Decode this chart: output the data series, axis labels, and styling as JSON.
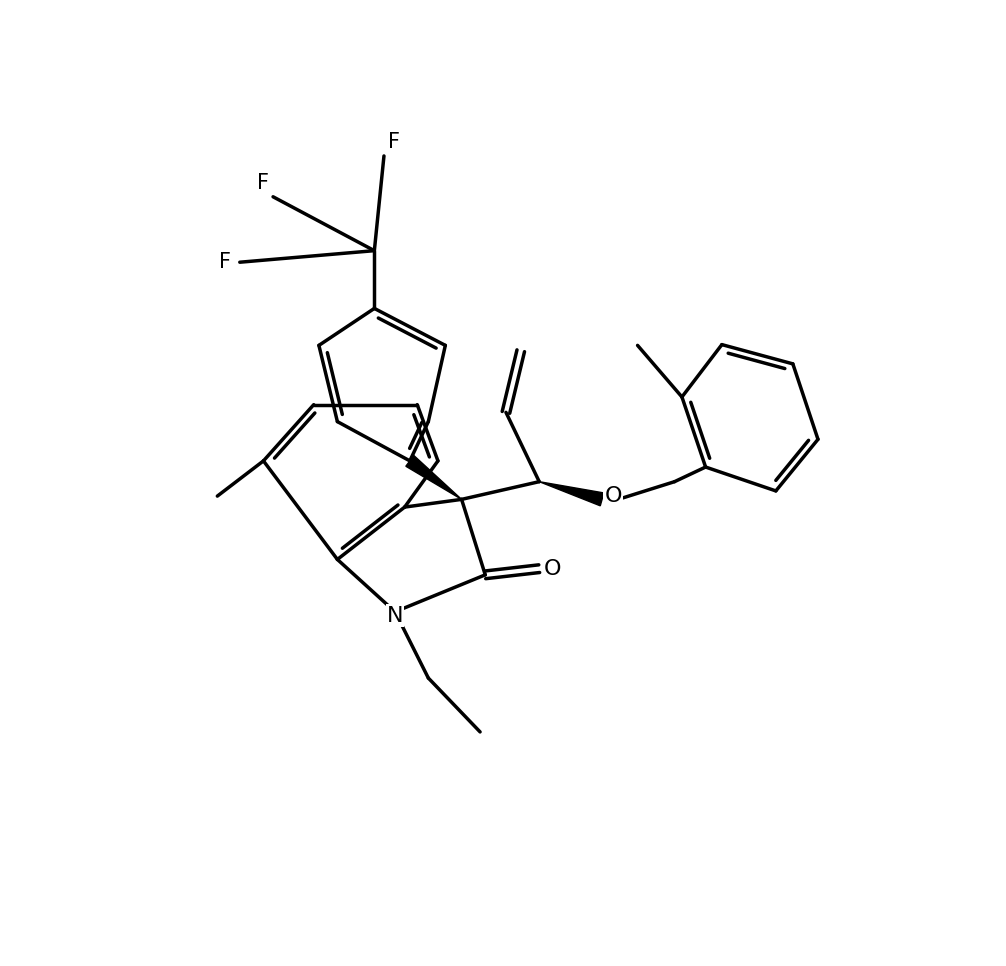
{
  "background_color": "#ffffff",
  "line_color": "#000000",
  "line_width": 2.5,
  "figsize": [
    10.06,
    9.66
  ],
  "dpi": 100,
  "xlim": [
    0,
    10
  ],
  "ylim": [
    0,
    10
  ]
}
